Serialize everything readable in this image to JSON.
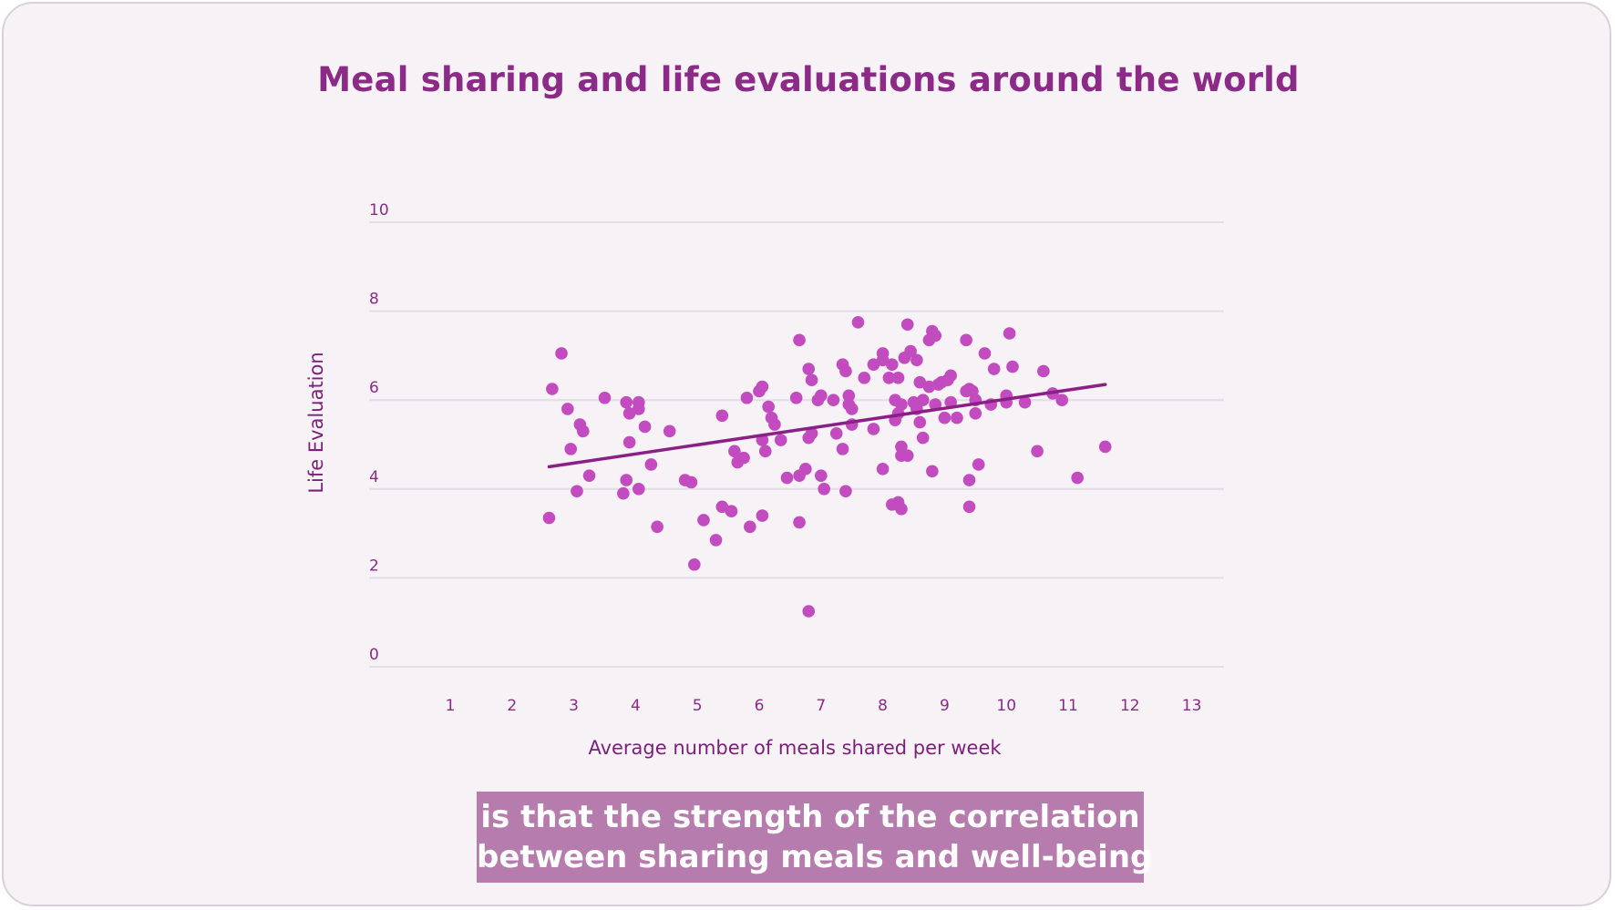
{
  "colors": {
    "accent": "#8c2a88",
    "point": "#c24bc0",
    "trend": "#8a1f86",
    "grid": "#e4dde4",
    "caption_bg": "#b57cad",
    "background": "#f7f2f6"
  },
  "caption": {
    "line1": "is that the strength of the correlation",
    "line2": "between sharing meals and well-being"
  },
  "chart_data": {
    "type": "scatter",
    "title": "Meal sharing and life evaluations around the world",
    "xlabel": "Average number of meals shared per week",
    "ylabel": "Life Evaluation",
    "xlim": [
      0,
      13.5
    ],
    "ylim": [
      0,
      10
    ],
    "xticks": [
      "1",
      "2",
      "3",
      "4",
      "5",
      "6",
      "7",
      "8",
      "9",
      "10",
      "11",
      "12",
      "13"
    ],
    "yticks": [
      "0",
      "2",
      "4",
      "6",
      "8",
      "10"
    ],
    "grid": "horizontal",
    "trendline": {
      "x": [
        2.6,
        11.6
      ],
      "y": [
        4.5,
        6.35
      ]
    },
    "points": [
      [
        2.65,
        6.25
      ],
      [
        2.8,
        7.05
      ],
      [
        2.9,
        5.8
      ],
      [
        2.95,
        4.9
      ],
      [
        3.05,
        3.95
      ],
      [
        3.1,
        5.45
      ],
      [
        3.15,
        5.3
      ],
      [
        3.25,
        4.3
      ],
      [
        3.5,
        6.05
      ],
      [
        2.6,
        3.35
      ],
      [
        3.85,
        5.95
      ],
      [
        3.9,
        5.7
      ],
      [
        3.9,
        5.05
      ],
      [
        3.85,
        4.2
      ],
      [
        3.8,
        3.9
      ],
      [
        4.05,
        5.95
      ],
      [
        4.05,
        5.8
      ],
      [
        4.15,
        5.4
      ],
      [
        4.25,
        4.55
      ],
      [
        4.05,
        4.0
      ],
      [
        4.35,
        3.15
      ],
      [
        4.55,
        5.3
      ],
      [
        4.8,
        4.2
      ],
      [
        4.9,
        4.15
      ],
      [
        4.95,
        2.3
      ],
      [
        5.1,
        3.3
      ],
      [
        5.3,
        2.85
      ],
      [
        5.4,
        3.6
      ],
      [
        5.55,
        3.5
      ],
      [
        5.4,
        5.65
      ],
      [
        5.6,
        4.85
      ],
      [
        5.65,
        4.6
      ],
      [
        5.75,
        4.7
      ],
      [
        5.8,
        6.05
      ],
      [
        5.85,
        3.15
      ],
      [
        6.0,
        6.2
      ],
      [
        6.05,
        6.3
      ],
      [
        6.05,
        3.4
      ],
      [
        6.1,
        4.85
      ],
      [
        6.05,
        5.1
      ],
      [
        6.15,
        5.85
      ],
      [
        6.2,
        5.6
      ],
      [
        6.25,
        5.45
      ],
      [
        6.35,
        5.1
      ],
      [
        6.45,
        4.25
      ],
      [
        6.6,
        6.05
      ],
      [
        6.65,
        4.3
      ],
      [
        6.65,
        3.25
      ],
      [
        6.75,
        4.45
      ],
      [
        6.65,
        7.35
      ],
      [
        6.8,
        6.7
      ],
      [
        6.85,
        6.45
      ],
      [
        6.85,
        5.25
      ],
      [
        6.8,
        5.15
      ],
      [
        6.95,
        6.0
      ],
      [
        7.0,
        6.1
      ],
      [
        7.0,
        4.3
      ],
      [
        7.05,
        4.0
      ],
      [
        7.2,
        6.0
      ],
      [
        7.25,
        5.25
      ],
      [
        7.35,
        6.8
      ],
      [
        7.4,
        6.65
      ],
      [
        7.45,
        6.1
      ],
      [
        7.45,
        5.9
      ],
      [
        7.5,
        5.45
      ],
      [
        7.35,
        4.9
      ],
      [
        7.4,
        3.95
      ],
      [
        7.6,
        7.75
      ],
      [
        7.7,
        6.5
      ],
      [
        7.85,
        6.8
      ],
      [
        7.85,
        5.35
      ],
      [
        8.0,
        6.9
      ],
      [
        8.0,
        7.05
      ],
      [
        8.0,
        4.45
      ],
      [
        8.1,
        6.5
      ],
      [
        8.15,
        6.8
      ],
      [
        8.2,
        6.0
      ],
      [
        8.2,
        5.55
      ],
      [
        8.25,
        5.7
      ],
      [
        8.3,
        5.9
      ],
      [
        8.35,
        6.95
      ],
      [
        8.4,
        7.7
      ],
      [
        8.45,
        7.1
      ],
      [
        8.25,
        6.5
      ],
      [
        8.3,
        4.95
      ],
      [
        8.3,
        4.75
      ],
      [
        8.4,
        4.75
      ],
      [
        8.25,
        3.7
      ],
      [
        8.3,
        3.55
      ],
      [
        8.15,
        3.65
      ],
      [
        8.55,
        6.9
      ],
      [
        8.6,
        6.4
      ],
      [
        8.65,
        6.0
      ],
      [
        8.6,
        5.5
      ],
      [
        8.65,
        5.15
      ],
      [
        8.5,
        5.95
      ],
      [
        8.75,
        7.35
      ],
      [
        8.8,
        7.55
      ],
      [
        8.85,
        7.45
      ],
      [
        8.75,
        6.3
      ],
      [
        8.85,
        5.9
      ],
      [
        8.9,
        6.35
      ],
      [
        8.95,
        6.4
      ],
      [
        9.0,
        5.6
      ],
      [
        8.8,
        4.4
      ],
      [
        9.1,
        6.55
      ],
      [
        9.1,
        5.95
      ],
      [
        9.2,
        5.6
      ],
      [
        9.35,
        6.2
      ],
      [
        9.4,
        6.25
      ],
      [
        9.45,
        6.2
      ],
      [
        9.5,
        6.0
      ],
      [
        9.35,
        7.35
      ],
      [
        9.5,
        5.7
      ],
      [
        9.55,
        4.55
      ],
      [
        9.4,
        4.2
      ],
      [
        9.4,
        3.6
      ],
      [
        9.65,
        7.05
      ],
      [
        9.75,
        5.9
      ],
      [
        9.8,
        6.7
      ],
      [
        10.0,
        5.95
      ],
      [
        10.0,
        6.1
      ],
      [
        10.05,
        7.5
      ],
      [
        10.1,
        6.75
      ],
      [
        10.3,
        5.95
      ],
      [
        10.5,
        4.85
      ],
      [
        10.6,
        6.65
      ],
      [
        10.75,
        6.15
      ],
      [
        10.9,
        6.0
      ],
      [
        11.15,
        4.25
      ],
      [
        11.6,
        4.95
      ],
      [
        9.05,
        6.45
      ],
      [
        7.5,
        5.8
      ],
      [
        6.8,
        1.25
      ],
      [
        8.55,
        5.8
      ]
    ]
  }
}
